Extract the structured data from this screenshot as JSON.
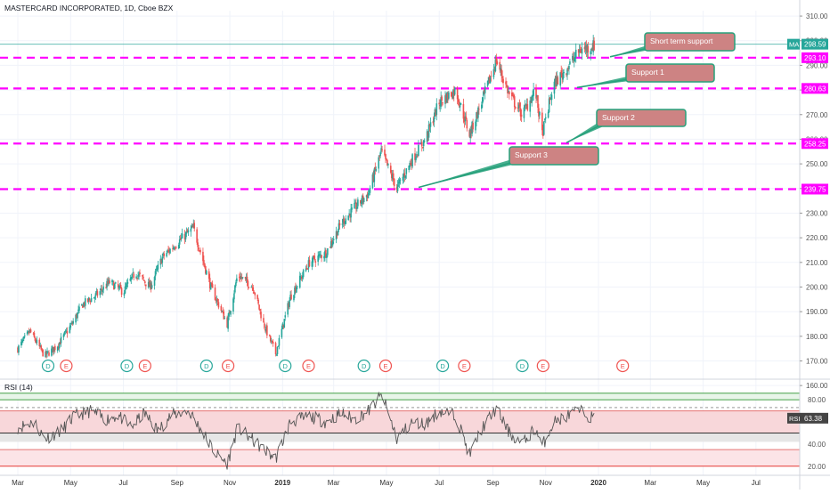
{
  "header": {
    "title": "MASTERCARD INCORPORATED, 1D, Cboe BZX"
  },
  "colors": {
    "up": "#26a69a",
    "down": "#ef5350",
    "support_line": "#ff00ff",
    "callout_fill": "#cd8383",
    "callout_border": "#27a17b",
    "ma": "#26a69a"
  },
  "chart_data": [
    {
      "type": "candlestick",
      "title": "MASTERCARD INCORPORATED, 1D, Cboe BZX",
      "y_axis": {
        "ticks": [
          160,
          170,
          180,
          190,
          200,
          210,
          220,
          230,
          240,
          250,
          260,
          270,
          280,
          290,
          300,
          310
        ],
        "ylim": [
          155,
          314
        ]
      },
      "x_axis": {
        "ticks": [
          "Mar",
          "May",
          "Jul",
          "Sep",
          "Nov",
          "2019",
          "Mar",
          "May",
          "Jul",
          "Sep",
          "Nov",
          "2020",
          "Mar",
          "May",
          "Jul"
        ]
      },
      "price_path": [
        [
          "2018-03-01",
          175
        ],
        [
          "2018-03-15",
          182
        ],
        [
          "2018-04-01",
          172
        ],
        [
          "2018-04-15",
          176
        ],
        [
          "2018-05-01",
          184
        ],
        [
          "2018-05-15",
          193
        ],
        [
          "2018-06-01",
          197
        ],
        [
          "2018-06-15",
          202
        ],
        [
          "2018-07-01",
          198
        ],
        [
          "2018-07-15",
          206
        ],
        [
          "2018-08-01",
          200
        ],
        [
          "2018-08-15",
          212
        ],
        [
          "2018-09-01",
          218
        ],
        [
          "2018-09-20",
          224
        ],
        [
          "2018-10-10",
          200
        ],
        [
          "2018-10-29",
          185
        ],
        [
          "2018-11-10",
          205
        ],
        [
          "2018-11-28",
          200
        ],
        [
          "2018-12-10",
          185
        ],
        [
          "2018-12-24",
          173
        ],
        [
          "2019-01-10",
          196
        ],
        [
          "2019-02-01",
          210
        ],
        [
          "2019-02-20",
          214
        ],
        [
          "2019-03-10",
          226
        ],
        [
          "2019-03-25",
          232
        ],
        [
          "2019-04-10",
          238
        ],
        [
          "2019-04-25",
          255
        ],
        [
          "2019-05-13",
          240
        ],
        [
          "2019-05-31",
          252
        ],
        [
          "2019-06-15",
          260
        ],
        [
          "2019-07-01",
          275
        ],
        [
          "2019-07-20",
          280
        ],
        [
          "2019-08-05",
          262
        ],
        [
          "2019-08-20",
          276
        ],
        [
          "2019-09-05",
          292
        ],
        [
          "2019-09-20",
          278
        ],
        [
          "2019-10-05",
          270
        ],
        [
          "2019-10-20",
          280
        ],
        [
          "2019-10-28",
          262
        ],
        [
          "2019-11-10",
          282
        ],
        [
          "2019-11-28",
          290
        ],
        [
          "2019-12-10",
          296
        ],
        [
          "2019-12-27",
          298
        ]
      ],
      "moving_average": {
        "label": "MA",
        "value": 298.59
      },
      "support_levels": [
        293.1,
        280.63,
        258.25,
        239.75
      ],
      "callouts": [
        {
          "text": "Short term support",
          "level": 293.1
        },
        {
          "text": "Support 1",
          "level": 280.63
        },
        {
          "text": "Support 2",
          "level": 258.25
        },
        {
          "text": "Support 3",
          "level": 239.75
        }
      ],
      "events": [
        {
          "date": "2018-04-05",
          "kind": "D"
        },
        {
          "date": "2018-04-26",
          "kind": "E"
        },
        {
          "date": "2018-07-05",
          "kind": "D"
        },
        {
          "date": "2018-07-26",
          "kind": "E"
        },
        {
          "date": "2018-10-05",
          "kind": "D"
        },
        {
          "date": "2018-10-30",
          "kind": "E"
        },
        {
          "date": "2019-01-04",
          "kind": "D"
        },
        {
          "date": "2019-01-31",
          "kind": "E"
        },
        {
          "date": "2019-04-05",
          "kind": "D"
        },
        {
          "date": "2019-04-30",
          "kind": "E"
        },
        {
          "date": "2019-07-05",
          "kind": "D"
        },
        {
          "date": "2019-07-30",
          "kind": "E"
        },
        {
          "date": "2019-10-05",
          "kind": "D"
        },
        {
          "date": "2019-10-29",
          "kind": "E"
        },
        {
          "date": "2020-01-29",
          "kind": "E"
        }
      ]
    },
    {
      "type": "line",
      "title": "RSI (14)",
      "current": {
        "label": "RSI",
        "value": 63.38
      },
      "y_axis": {
        "ticks": [
          20,
          40,
          80
        ],
        "ylim": [
          15,
          93
        ]
      },
      "bands": [
        80,
        70,
        50,
        30,
        20
      ],
      "series": [
        {
          "values": [
            [
              "2018-03-01",
              55
            ],
            [
              "2018-03-20",
              60
            ],
            [
              "2018-04-01",
              45
            ],
            [
              "2018-04-20",
              52
            ],
            [
              "2018-05-05",
              65
            ],
            [
              "2018-05-25",
              70
            ],
            [
              "2018-06-10",
              62
            ],
            [
              "2018-06-25",
              66
            ],
            [
              "2018-07-10",
              55
            ],
            [
              "2018-07-25",
              68
            ],
            [
              "2018-08-10",
              52
            ],
            [
              "2018-08-25",
              66
            ],
            [
              "2018-09-15",
              70
            ],
            [
              "2018-10-01",
              50
            ],
            [
              "2018-10-15",
              32
            ],
            [
              "2018-10-29",
              22
            ],
            [
              "2018-11-10",
              55
            ],
            [
              "2018-11-25",
              45
            ],
            [
              "2018-12-10",
              35
            ],
            [
              "2018-12-24",
              27
            ],
            [
              "2019-01-10",
              60
            ],
            [
              "2019-02-01",
              65
            ],
            [
              "2019-02-20",
              60
            ],
            [
              "2019-03-10",
              68
            ],
            [
              "2019-03-25",
              62
            ],
            [
              "2019-04-10",
              70
            ],
            [
              "2019-04-26",
              84
            ],
            [
              "2019-05-13",
              45
            ],
            [
              "2019-05-31",
              60
            ],
            [
              "2019-06-15",
              58
            ],
            [
              "2019-07-01",
              70
            ],
            [
              "2019-07-20",
              66
            ],
            [
              "2019-08-05",
              30
            ],
            [
              "2019-08-20",
              55
            ],
            [
              "2019-09-05",
              72
            ],
            [
              "2019-09-20",
              50
            ],
            [
              "2019-10-05",
              40
            ],
            [
              "2019-10-20",
              55
            ],
            [
              "2019-10-28",
              38
            ],
            [
              "2019-11-10",
              60
            ],
            [
              "2019-11-28",
              66
            ],
            [
              "2019-12-10",
              70
            ],
            [
              "2019-12-27",
              63
            ]
          ]
        }
      ]
    }
  ]
}
